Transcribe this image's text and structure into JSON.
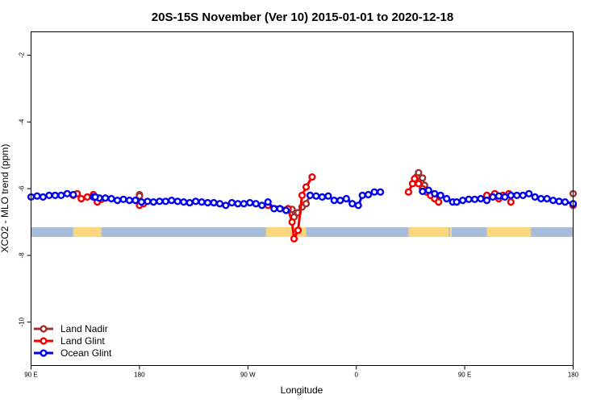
{
  "chart_data": {
    "type": "line",
    "title": "20S-15S November (Ver 10)   2015-01-01 to 2020-12-18",
    "xlabel": "Longitude",
    "ylabel": "XCO2 - MLO trend (ppm)",
    "xlim": [
      -90,
      180
    ],
    "ylim": [
      -11.3,
      -1.3
    ],
    "x_ticks": [
      {
        "value": -90,
        "label": "90 E"
      },
      {
        "value": -36,
        "label": "180"
      },
      {
        "value": 18,
        "label": "90 W"
      },
      {
        "value": 72,
        "label": "0"
      },
      {
        "value": 126,
        "label": "90 E"
      },
      {
        "value": 180,
        "label": "180"
      }
    ],
    "y_ticks": [
      {
        "value": -2,
        "label": "-2"
      },
      {
        "value": -4,
        "label": "-4"
      },
      {
        "value": -6,
        "label": "-6"
      },
      {
        "value": -8,
        "label": "-8"
      },
      {
        "value": -10,
        "label": "-10"
      }
    ],
    "surface_band": {
      "y": -7.3,
      "ocean_color": "#a7bcd9",
      "land_color": "#fcd67f",
      "land_ranges": [
        [
          -69,
          -55
        ],
        [
          27,
          47
        ],
        [
          98,
          118
        ],
        [
          118.5,
          119.5
        ],
        [
          137,
          159
        ]
      ]
    },
    "legend": {
      "position": "bottom-left",
      "entries": [
        {
          "name": "Land Nadir",
          "color": "#9b3333"
        },
        {
          "name": "Land Glint",
          "color": "#ee0000"
        },
        {
          "name": "Ocean Glint",
          "color": "#0000ee"
        }
      ]
    },
    "series": [
      {
        "name": "Land Nadir",
        "color": "#9b3333",
        "segments": [
          [
            [
              -36,
              -6.18
            ],
            [
              -36,
              -6.22
            ]
          ],
          [
            [
              40,
              -6.62
            ],
            [
              41,
              -6.85
            ],
            [
              43,
              -6.72
            ],
            [
              45,
              -6.55
            ],
            [
              47,
              -6.45
            ],
            [
              49,
              -6.2
            ]
          ],
          [
            [
              102,
              -5.65
            ],
            [
              103,
              -5.52
            ],
            [
              105,
              -5.68
            ],
            [
              106,
              -5.9
            ]
          ],
          [
            [
              180,
              -6.15
            ]
          ]
        ]
      },
      {
        "name": "Land Glint",
        "color": "#ee0000",
        "segments": [
          [
            [
              -69,
              -6.2
            ],
            [
              -67,
              -6.15
            ],
            [
              -65,
              -6.3
            ],
            [
              -62,
              -6.25
            ],
            [
              -59,
              -6.18
            ],
            [
              -57,
              -6.4
            ]
          ],
          [
            [
              -36,
              -6.5
            ],
            [
              -34,
              -6.45
            ]
          ],
          [
            [
              -55,
              -6.32
            ]
          ],
          [
            [
              28,
              -6.5
            ],
            [
              38,
              -6.6
            ],
            [
              40,
              -7.0
            ],
            [
              41,
              -7.5
            ],
            [
              43,
              -7.25
            ],
            [
              45,
              -6.2
            ],
            [
              47,
              -5.95
            ],
            [
              50,
              -5.65
            ]
          ],
          [
            [
              98,
              -6.1
            ],
            [
              100,
              -5.85
            ],
            [
              101,
              -5.7
            ],
            [
              103,
              -5.85
            ],
            [
              105,
              -6.0
            ],
            [
              107,
              -6.1
            ],
            [
              109,
              -6.2
            ],
            [
              111,
              -6.3
            ],
            [
              113,
              -6.4
            ]
          ],
          [
            [
              137,
              -6.2
            ],
            [
              141,
              -6.15
            ],
            [
              143,
              -6.3
            ],
            [
              145,
              -6.2
            ],
            [
              148,
              -6.15
            ],
            [
              149,
              -6.4
            ]
          ],
          [
            [
              180,
              -6.5
            ]
          ]
        ]
      },
      {
        "name": "Ocean Glint",
        "color": "#0000ee",
        "segments": [
          [
            [
              -90,
              -6.25
            ],
            [
              -87,
              -6.22
            ],
            [
              -84,
              -6.25
            ],
            [
              -81,
              -6.2
            ],
            [
              -78,
              -6.2
            ],
            [
              -75,
              -6.2
            ],
            [
              -72,
              -6.15
            ],
            [
              -69,
              -6.18
            ]
          ],
          [
            [
              -59,
              -6.25
            ],
            [
              -56,
              -6.28
            ],
            [
              -53,
              -6.28
            ],
            [
              -50,
              -6.3
            ],
            [
              -47,
              -6.35
            ],
            [
              -44,
              -6.32
            ],
            [
              -41,
              -6.35
            ],
            [
              -38,
              -6.35
            ],
            [
              -35,
              -6.4
            ],
            [
              -32,
              -6.38
            ],
            [
              -29,
              -6.4
            ],
            [
              -26,
              -6.38
            ],
            [
              -23,
              -6.38
            ],
            [
              -20,
              -6.35
            ],
            [
              -17,
              -6.38
            ],
            [
              -14,
              -6.4
            ],
            [
              -11,
              -6.42
            ],
            [
              -8,
              -6.38
            ],
            [
              -5,
              -6.4
            ],
            [
              -2,
              -6.42
            ],
            [
              1,
              -6.42
            ],
            [
              4,
              -6.45
            ],
            [
              7,
              -6.5
            ],
            [
              10,
              -6.42
            ],
            [
              13,
              -6.45
            ],
            [
              16,
              -6.45
            ],
            [
              19,
              -6.42
            ],
            [
              22,
              -6.45
            ],
            [
              25,
              -6.5
            ],
            [
              28,
              -6.4
            ],
            [
              31,
              -6.6
            ],
            [
              34,
              -6.6
            ],
            [
              37,
              -6.65
            ]
          ],
          [
            [
              49,
              -6.2
            ],
            [
              52,
              -6.22
            ],
            [
              55,
              -6.25
            ],
            [
              58,
              -6.22
            ],
            [
              61,
              -6.35
            ],
            [
              64,
              -6.35
            ],
            [
              67,
              -6.3
            ],
            [
              70,
              -6.45
            ],
            [
              73,
              -6.5
            ],
            [
              75,
              -6.2
            ],
            [
              78,
              -6.18
            ],
            [
              81,
              -6.1
            ],
            [
              84,
              -6.1
            ]
          ],
          [
            [
              105,
              -6.08
            ],
            [
              108,
              -6.05
            ],
            [
              111,
              -6.15
            ],
            [
              114,
              -6.2
            ],
            [
              117,
              -6.3
            ],
            [
              120,
              -6.4
            ]
          ],
          [
            [
              -58,
              -6.25
            ]
          ],
          [
            [
              122,
              -6.4
            ],
            [
              125,
              -6.35
            ],
            [
              128,
              -6.32
            ],
            [
              131,
              -6.32
            ],
            [
              134,
              -6.3
            ],
            [
              137,
              -6.35
            ],
            [
              140,
              -6.25
            ],
            [
              143,
              -6.22
            ],
            [
              146,
              -6.25
            ],
            [
              149,
              -6.2
            ],
            [
              152,
              -6.2
            ],
            [
              155,
              -6.2
            ],
            [
              158,
              -6.15
            ],
            [
              161,
              -6.25
            ],
            [
              164,
              -6.3
            ],
            [
              167,
              -6.3
            ],
            [
              170,
              -6.35
            ],
            [
              173,
              -6.38
            ],
            [
              176,
              -6.4
            ],
            [
              180,
              -6.45
            ]
          ]
        ]
      }
    ]
  }
}
